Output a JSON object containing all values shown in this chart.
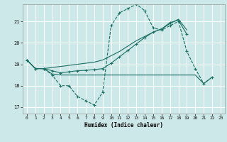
{
  "xlabel": "Humidex (Indice chaleur)",
  "xlim": [
    -0.5,
    23.5
  ],
  "ylim": [
    16.7,
    21.8
  ],
  "yticks": [
    17,
    18,
    19,
    20,
    21
  ],
  "xticks": [
    0,
    1,
    2,
    3,
    4,
    5,
    6,
    7,
    8,
    9,
    10,
    11,
    12,
    13,
    14,
    15,
    16,
    17,
    18,
    19,
    20,
    21,
    22,
    23
  ],
  "bg_color": "#cce8e8",
  "line_color": "#1a6e62",
  "grid_color": "#ffffff",
  "s1_x": [
    0,
    1,
    2,
    3,
    4,
    5,
    6,
    7,
    8,
    9,
    10,
    11,
    12,
    13,
    14,
    15,
    16,
    17,
    18,
    19,
    20,
    21,
    22
  ],
  "s1_y": [
    19.2,
    18.8,
    18.8,
    18.5,
    18.0,
    18.0,
    17.5,
    17.3,
    17.1,
    17.7,
    20.8,
    21.4,
    21.6,
    21.8,
    21.5,
    20.7,
    20.6,
    20.8,
    21.0,
    19.6,
    18.8,
    18.1,
    18.4
  ],
  "s2_x": [
    0,
    1,
    2,
    3,
    4,
    5,
    6,
    7,
    8,
    9,
    10,
    11,
    12,
    13,
    14,
    15,
    16,
    17,
    18,
    19
  ],
  "s2_y": [
    19.2,
    18.8,
    18.8,
    18.85,
    18.9,
    18.95,
    19.0,
    19.05,
    19.1,
    19.2,
    19.4,
    19.6,
    19.85,
    20.1,
    20.3,
    20.5,
    20.65,
    20.9,
    21.1,
    20.6
  ],
  "s3_x": [
    0,
    1,
    2,
    3,
    4,
    5,
    6,
    7,
    8,
    9,
    10,
    11,
    12,
    13,
    14,
    15,
    16,
    17,
    18,
    19,
    20,
    21,
    22
  ],
  "s3_y": [
    19.2,
    18.8,
    18.8,
    18.55,
    18.5,
    18.5,
    18.5,
    18.5,
    18.5,
    18.5,
    18.5,
    18.5,
    18.5,
    18.5,
    18.5,
    18.5,
    18.5,
    18.5,
    18.5,
    18.5,
    18.5,
    18.1,
    18.4
  ],
  "s4_x": [
    0,
    1,
    2,
    3,
    4,
    5,
    6,
    7,
    8,
    9,
    10,
    11,
    12,
    13,
    14,
    15,
    16,
    17,
    18,
    19
  ],
  "s4_y": [
    19.2,
    18.8,
    18.8,
    18.7,
    18.6,
    18.65,
    18.7,
    18.72,
    18.75,
    18.8,
    19.05,
    19.35,
    19.65,
    19.95,
    20.25,
    20.5,
    20.65,
    20.95,
    21.05,
    20.4
  ]
}
